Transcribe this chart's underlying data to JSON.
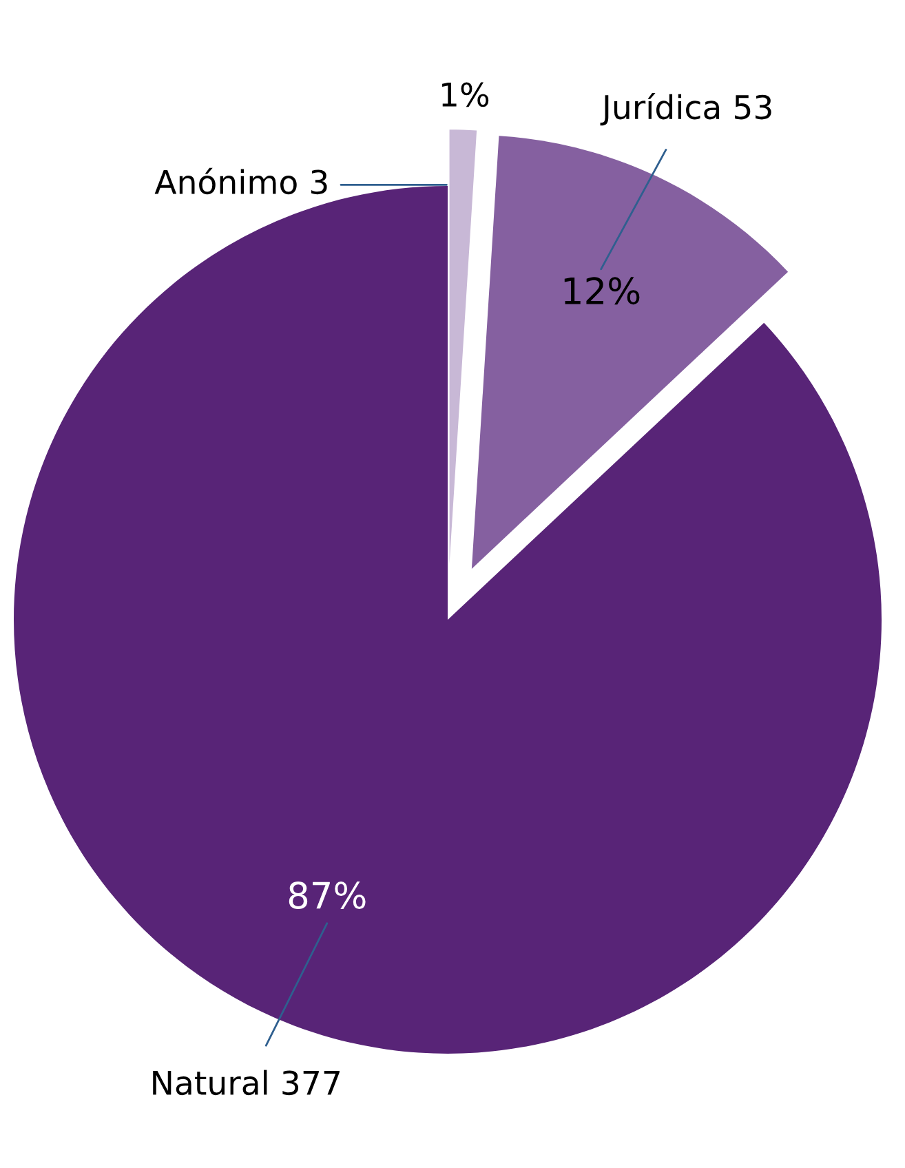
{
  "chart_data": {
    "type": "pie",
    "categories": [
      "Anónimo 3",
      "Jurídica 53",
      "Natural 377"
    ],
    "values": [
      1,
      12,
      87
    ],
    "value_labels": [
      "1%",
      "12%",
      "87%"
    ],
    "colors": [
      "#c8b8d6",
      "#8560a0",
      "#582477"
    ]
  }
}
